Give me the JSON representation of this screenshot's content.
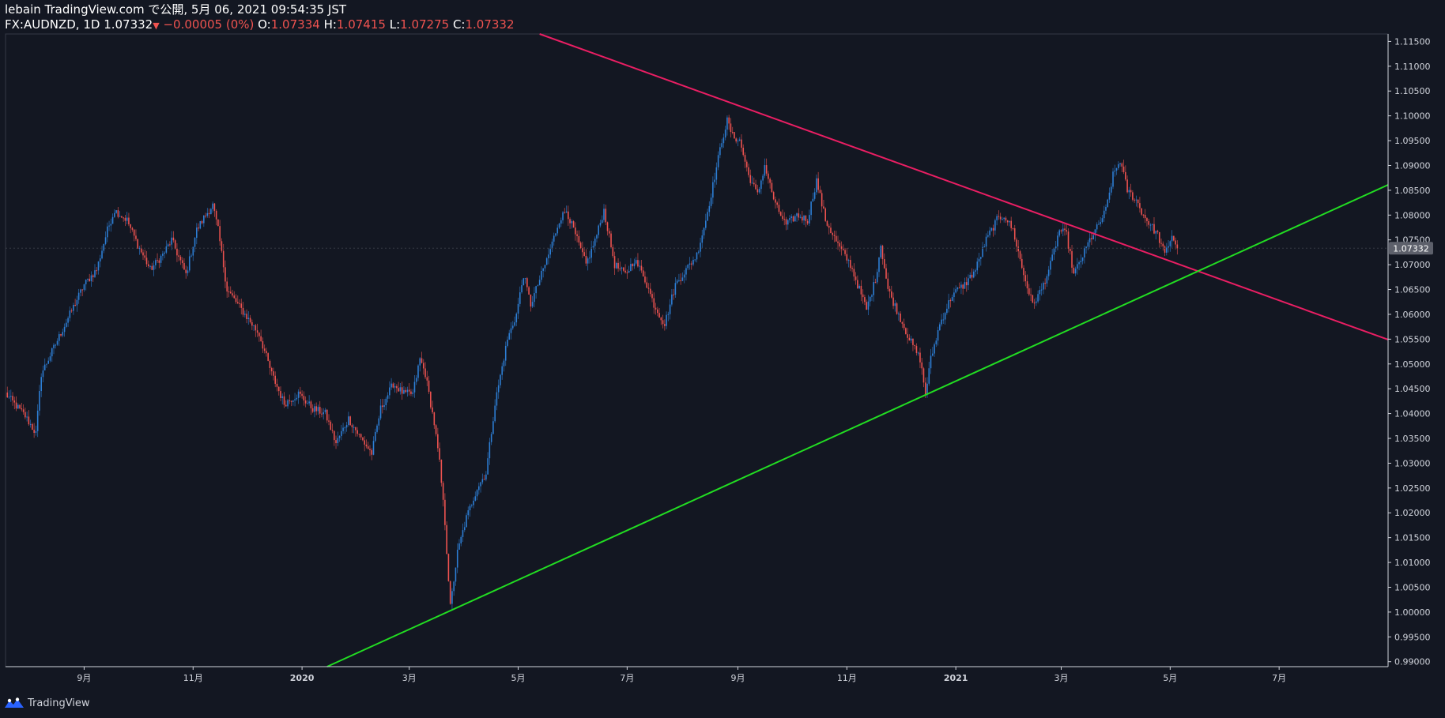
{
  "header": {
    "line1": "lebain TradingView.com で公開, 5月 06, 2021 09:54:35 JST",
    "symbol": "FX:AUDNZD, 1D 1.07332",
    "arrow": "▼",
    "change": "−0.00005 (0%)",
    "o_label": "O:",
    "o_value": "1.07334",
    "h_label": "H:",
    "h_value": "1.07415",
    "l_label": "L:",
    "l_value": "1.07275",
    "c_label": "C:",
    "c_value": "1.07332"
  },
  "footer": {
    "brand": "TradingView",
    "logo_icon": "tradingview-logo-icon"
  },
  "colors": {
    "background": "#131722",
    "up": "#2d7fd6",
    "down": "#ef5350",
    "resistance": "#e91e63",
    "support": "#22dd22",
    "price_label_bg": "#5d606b"
  },
  "chart_data": {
    "type": "candlestick",
    "title": "FX:AUDNZD, 1D",
    "last_price": 1.07332,
    "last_price_label": "1.07332",
    "ylim": [
      0.989,
      1.1165
    ],
    "y_ticks": [
      "0.99000",
      "0.99500",
      "1.00000",
      "1.00500",
      "1.01000",
      "1.01500",
      "1.02000",
      "1.02500",
      "1.03000",
      "1.03500",
      "1.04000",
      "1.04500",
      "1.05000",
      "1.05500",
      "1.06000",
      "1.06500",
      "1.07000",
      "1.07500",
      "1.08000",
      "1.08500",
      "1.09000",
      "1.09500",
      "1.10000",
      "1.10500",
      "1.11000",
      "1.11500"
    ],
    "x_range": [
      "2019-07-19",
      "2021-08-31"
    ],
    "x_ticks": [
      {
        "label": "9月",
        "date": "2019-09-01"
      },
      {
        "label": "11月",
        "date": "2019-11-01"
      },
      {
        "label": "2020",
        "date": "2020-01-01"
      },
      {
        "label": "3月",
        "date": "2020-03-01"
      },
      {
        "label": "5月",
        "date": "2020-05-01"
      },
      {
        "label": "7月",
        "date": "2020-07-01"
      },
      {
        "label": "9月",
        "date": "2020-09-01"
      },
      {
        "label": "11月",
        "date": "2020-11-01"
      },
      {
        "label": "2021",
        "date": "2021-01-01"
      },
      {
        "label": "3月",
        "date": "2021-03-01"
      },
      {
        "label": "5月",
        "date": "2021-05-01"
      },
      {
        "label": "7月",
        "date": "2021-07-01"
      }
    ],
    "trendlines": [
      {
        "name": "resistance",
        "color": "#e91e63",
        "from": {
          "date": "2020-05-13",
          "price": 1.1165
        },
        "to": {
          "date": "2021-08-31",
          "price": 1.0549
        }
      },
      {
        "name": "support",
        "color": "#22dd22",
        "from": {
          "date": "2020-01-15",
          "price": 0.989
        },
        "to": {
          "date": "2021-08-31",
          "price": 1.0861
        }
      }
    ],
    "anchors": [
      {
        "date": "2019-07-19",
        "close": 1.044
      },
      {
        "date": "2019-07-30",
        "close": 1.0395
      },
      {
        "date": "2019-08-05",
        "close": 1.036
      },
      {
        "date": "2019-08-08",
        "close": 1.048
      },
      {
        "date": "2019-08-20",
        "close": 1.057
      },
      {
        "date": "2019-09-01",
        "close": 1.066
      },
      {
        "date": "2019-09-08",
        "close": 1.069
      },
      {
        "date": "2019-09-14",
        "close": 1.077
      },
      {
        "date": "2019-09-18",
        "close": 1.081
      },
      {
        "date": "2019-09-25",
        "close": 1.079
      },
      {
        "date": "2019-10-01",
        "close": 1.074
      },
      {
        "date": "2019-10-08",
        "close": 1.069
      },
      {
        "date": "2019-10-15",
        "close": 1.072
      },
      {
        "date": "2019-10-20",
        "close": 1.075
      },
      {
        "date": "2019-10-28",
        "close": 1.068
      },
      {
        "date": "2019-11-03",
        "close": 1.077
      },
      {
        "date": "2019-11-08",
        "close": 1.08
      },
      {
        "date": "2019-11-12",
        "close": 1.082
      },
      {
        "date": "2019-11-15",
        "close": 1.077
      },
      {
        "date": "2019-11-20",
        "close": 1.065
      },
      {
        "date": "2019-11-28",
        "close": 1.061
      },
      {
        "date": "2019-12-08",
        "close": 1.056
      },
      {
        "date": "2019-12-15",
        "close": 1.048
      },
      {
        "date": "2019-12-22",
        "close": 1.042
      },
      {
        "date": "2019-12-30",
        "close": 1.044
      },
      {
        "date": "2020-01-07",
        "close": 1.041
      },
      {
        "date": "2020-01-14",
        "close": 1.04
      },
      {
        "date": "2020-01-20",
        "close": 1.034
      },
      {
        "date": "2020-01-27",
        "close": 1.039
      },
      {
        "date": "2020-02-03",
        "close": 1.035
      },
      {
        "date": "2020-02-09",
        "close": 1.032
      },
      {
        "date": "2020-02-14",
        "close": 1.041
      },
      {
        "date": "2020-02-21",
        "close": 1.046
      },
      {
        "date": "2020-02-27",
        "close": 1.044
      },
      {
        "date": "2020-03-03",
        "close": 1.044
      },
      {
        "date": "2020-03-07",
        "close": 1.051
      },
      {
        "date": "2020-03-10",
        "close": 1.048
      },
      {
        "date": "2020-03-15",
        "close": 1.038
      },
      {
        "date": "2020-03-18",
        "close": 1.03
      },
      {
        "date": "2020-03-21",
        "close": 1.018
      },
      {
        "date": "2020-03-24",
        "close": 1.001
      },
      {
        "date": "2020-03-28",
        "close": 1.012
      },
      {
        "date": "2020-04-02",
        "close": 1.019
      },
      {
        "date": "2020-04-08",
        "close": 1.025
      },
      {
        "date": "2020-04-13",
        "close": 1.028
      },
      {
        "date": "2020-04-18",
        "close": 1.042
      },
      {
        "date": "2020-04-25",
        "close": 1.055
      },
      {
        "date": "2020-04-30",
        "close": 1.06
      },
      {
        "date": "2020-05-04",
        "close": 1.068
      },
      {
        "date": "2020-05-08",
        "close": 1.062
      },
      {
        "date": "2020-05-12",
        "close": 1.066
      },
      {
        "date": "2020-05-18",
        "close": 1.072
      },
      {
        "date": "2020-05-24",
        "close": 1.079
      },
      {
        "date": "2020-05-28",
        "close": 1.081
      },
      {
        "date": "2020-06-02",
        "close": 1.076
      },
      {
        "date": "2020-06-08",
        "close": 1.07
      },
      {
        "date": "2020-06-14",
        "close": 1.076
      },
      {
        "date": "2020-06-18",
        "close": 1.081
      },
      {
        "date": "2020-06-24",
        "close": 1.07
      },
      {
        "date": "2020-06-30",
        "close": 1.068
      },
      {
        "date": "2020-07-05",
        "close": 1.071
      },
      {
        "date": "2020-07-10",
        "close": 1.068
      },
      {
        "date": "2020-07-16",
        "close": 1.062
      },
      {
        "date": "2020-07-22",
        "close": 1.058
      },
      {
        "date": "2020-07-28",
        "close": 1.066
      },
      {
        "date": "2020-08-03",
        "close": 1.069
      },
      {
        "date": "2020-08-09",
        "close": 1.072
      },
      {
        "date": "2020-08-14",
        "close": 1.079
      },
      {
        "date": "2020-08-18",
        "close": 1.086
      },
      {
        "date": "2020-08-23",
        "close": 1.095
      },
      {
        "date": "2020-08-26",
        "close": 1.099
      },
      {
        "date": "2020-08-29",
        "close": 1.096
      },
      {
        "date": "2020-09-02",
        "close": 1.095
      },
      {
        "date": "2020-09-07",
        "close": 1.088
      },
      {
        "date": "2020-09-12",
        "close": 1.084
      },
      {
        "date": "2020-09-16",
        "close": 1.09
      },
      {
        "date": "2020-09-22",
        "close": 1.082
      },
      {
        "date": "2020-09-28",
        "close": 1.078
      },
      {
        "date": "2020-10-04",
        "close": 1.08
      },
      {
        "date": "2020-10-10",
        "close": 1.079
      },
      {
        "date": "2020-10-15",
        "close": 1.087
      },
      {
        "date": "2020-10-20",
        "close": 1.079
      },
      {
        "date": "2020-10-27",
        "close": 1.074
      },
      {
        "date": "2020-11-03",
        "close": 1.07
      },
      {
        "date": "2020-11-08",
        "close": 1.065
      },
      {
        "date": "2020-11-12",
        "close": 1.061
      },
      {
        "date": "2020-11-17",
        "close": 1.067
      },
      {
        "date": "2020-11-20",
        "close": 1.074
      },
      {
        "date": "2020-11-24",
        "close": 1.065
      },
      {
        "date": "2020-11-30",
        "close": 1.06
      },
      {
        "date": "2020-12-06",
        "close": 1.055
      },
      {
        "date": "2020-12-12",
        "close": 1.051
      },
      {
        "date": "2020-12-15",
        "close": 1.044
      },
      {
        "date": "2020-12-18",
        "close": 1.051
      },
      {
        "date": "2020-12-23",
        "close": 1.058
      },
      {
        "date": "2020-12-30",
        "close": 1.064
      },
      {
        "date": "2021-01-06",
        "close": 1.066
      },
      {
        "date": "2021-01-12",
        "close": 1.069
      },
      {
        "date": "2021-01-18",
        "close": 1.075
      },
      {
        "date": "2021-01-24",
        "close": 1.079
      },
      {
        "date": "2021-01-28",
        "close": 1.08
      },
      {
        "date": "2021-02-02",
        "close": 1.077
      },
      {
        "date": "2021-02-08",
        "close": 1.068
      },
      {
        "date": "2021-02-13",
        "close": 1.062
      },
      {
        "date": "2021-02-18",
        "close": 1.065
      },
      {
        "date": "2021-02-23",
        "close": 1.07
      },
      {
        "date": "2021-02-28",
        "close": 1.077
      },
      {
        "date": "2021-03-04",
        "close": 1.076
      },
      {
        "date": "2021-03-08",
        "close": 1.068
      },
      {
        "date": "2021-03-12",
        "close": 1.071
      },
      {
        "date": "2021-03-17",
        "close": 1.075
      },
      {
        "date": "2021-03-22",
        "close": 1.078
      },
      {
        "date": "2021-03-26",
        "close": 1.081
      },
      {
        "date": "2021-03-30",
        "close": 1.088
      },
      {
        "date": "2021-04-03",
        "close": 1.091
      },
      {
        "date": "2021-04-07",
        "close": 1.085
      },
      {
        "date": "2021-04-12",
        "close": 1.083
      },
      {
        "date": "2021-04-16",
        "close": 1.08
      },
      {
        "date": "2021-04-20",
        "close": 1.078
      },
      {
        "date": "2021-04-24",
        "close": 1.076
      },
      {
        "date": "2021-04-28",
        "close": 1.072
      },
      {
        "date": "2021-05-02",
        "close": 1.076
      },
      {
        "date": "2021-05-05",
        "close": 1.0733
      }
    ]
  }
}
